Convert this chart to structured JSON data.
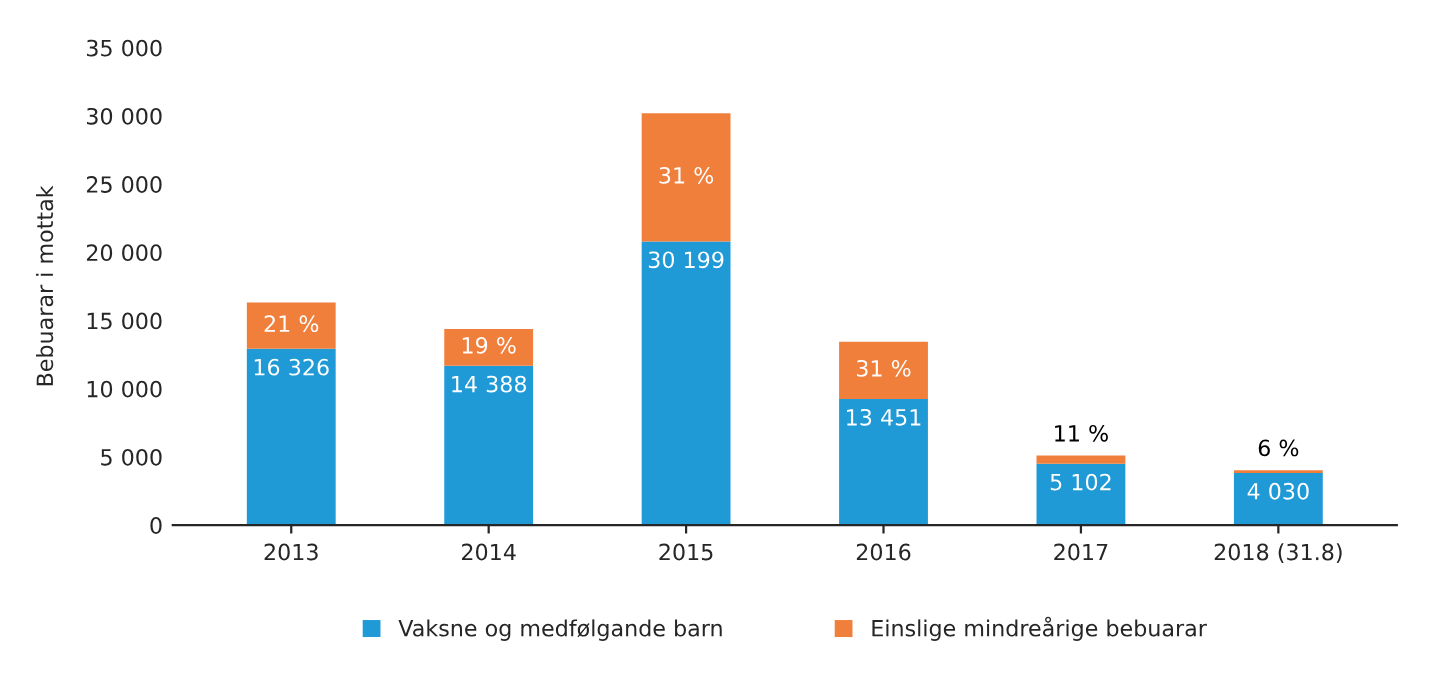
{
  "chart_data": {
    "type": "bar",
    "stacked": true,
    "ylabel": "Bebuarar i mottak",
    "categories": [
      "2013",
      "2014",
      "2015",
      "2016",
      "2017",
      "2018 (31.8)"
    ],
    "series": [
      {
        "name": "Vaksne og medfølgande barn",
        "color": "#1f9ad6",
        "values": [
          12926,
          11688,
          20799,
          9251,
          4502,
          3830
        ]
      },
      {
        "name": "Einslige mindreårige bebuarar",
        "color": "#f07f3c",
        "values": [
          3400,
          2700,
          9400,
          4200,
          600,
          200
        ]
      }
    ],
    "totals": [
      "16 326",
      "14 388",
      "30 199",
      "13 451",
      "5 102",
      "4 030"
    ],
    "annotations": [
      {
        "text": "21 %",
        "x": "2013",
        "y": 16326
      },
      {
        "text": "19 %",
        "x": "2014",
        "y": 14388
      },
      {
        "text": "31 %",
        "x": "2015",
        "y": 30199
      },
      {
        "text": "31 %",
        "x": "2016",
        "y": 13451
      },
      {
        "text": "11 %",
        "x": "2017",
        "y": 5102
      },
      {
        "text": "6 %",
        "x": "2018 (31.8)",
        "y": 4030
      }
    ],
    "ylim": [
      0,
      35000
    ],
    "yticks": [
      {
        "value": 0,
        "label": "0"
      },
      {
        "value": 5000,
        "label": "5 000"
      },
      {
        "value": 10000,
        "label": "10 000"
      },
      {
        "value": 15000,
        "label": "15 000"
      },
      {
        "value": 20000,
        "label": "20 000"
      },
      {
        "value": 25000,
        "label": "25 000"
      },
      {
        "value": 30000,
        "label": "30 000"
      },
      {
        "value": 35000,
        "label": "35 000"
      }
    ],
    "legend": "bottom"
  }
}
